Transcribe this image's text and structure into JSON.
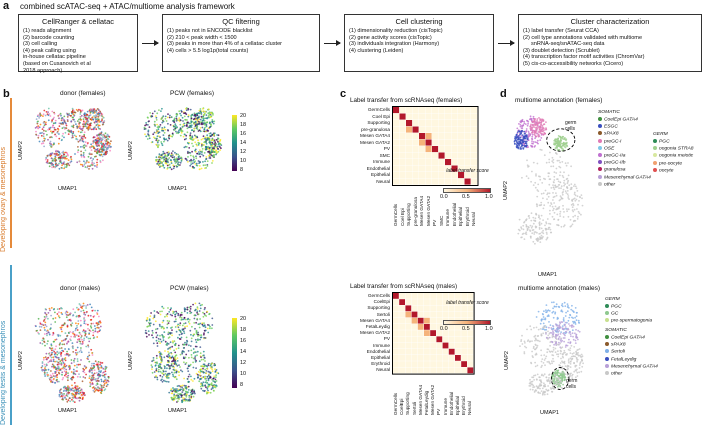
{
  "panels": {
    "a": "a",
    "b": "b",
    "c": "c",
    "d": "d"
  },
  "framework_title": "combined scATAC-seq + ATAC/multiome analysis framework",
  "steps": [
    {
      "title": "CellRanger & cellatac",
      "items": [
        "(1) reads alignment",
        "(2) barcode counting",
        "(3) cell calling",
        "(4) peak calling using",
        "in-house cellatac pipeline",
        "(based on Cusanovich et al",
        "2018 approach)"
      ]
    },
    {
      "title": "QC filtering",
      "items": [
        "(1) peaks not in ENCODE blacklist",
        "(2) 210 < peak width < 1500",
        "(3) peaks in more than 4% of a cellatac cluster",
        "(4) cells > 5.5 log1p(total counts)"
      ]
    },
    {
      "title": "Cell clustering",
      "items": [
        "(1) dimensionality reduction (cisTopic)",
        "(2) gene activity scores (cisTopic)",
        "(3) individuals integration (Harmony)",
        "(4) clustering (Leiden)"
      ]
    },
    {
      "title": "Cluster characterization",
      "items": [
        "(1) label transfer (Seurat CCA)",
        "(2) cell type annotations validated with multiome",
        "snRNA-seq/snATAC-seq data",
        "(3) doublet detection (Scrublet)",
        "(4) transcription factor motif activities (ChromVar)",
        "(5) cis-co-accessibility networks (Cicero)"
      ]
    }
  ],
  "umap": {
    "donor_f": "donor (females)",
    "pcw_f": "PCW (females)",
    "donor_m": "donor (males)",
    "pcw_m": "PCW (males)",
    "x": "UMAP1",
    "y": "UMAP2",
    "pcw_ticks": [
      "20",
      "18",
      "16",
      "14",
      "12",
      "10",
      "8"
    ]
  },
  "side_labels": {
    "female": "Developing ovary & mesonephros",
    "male": "Developing testis & mesonephros"
  },
  "heatmap_f": {
    "title": "Label transfer from scRNAseq (females)",
    "rows": [
      "GermCells",
      "Coel Epi",
      "Supporting",
      "pre-granulosa",
      "Mesen GATA4",
      "Mesen GATA2",
      "PV",
      "SMC",
      "Immune",
      "Endothelial",
      "Epithelial",
      "Neural"
    ],
    "cols": [
      "GermCells",
      "Coel Epi",
      "Supporting",
      "pre-granulosa",
      "Mesen GATA4",
      "Mesen GATA2",
      "PV",
      "SMC",
      "Immune",
      "Endothelial",
      "Epithelial",
      "Erythroid",
      "Neural"
    ],
    "scale_title": "label transfer score",
    "scale_ticks": [
      "0.0",
      "0.5",
      "1.0"
    ]
  },
  "heatmap_m": {
    "title": "Label transfer from scRNAseq (males)",
    "rows": [
      "GermCells",
      "CoelEpi",
      "Supporting",
      "Sertoli",
      "Mesen GATA4",
      "FetalLeydig",
      "Mesen GATA2",
      "PV",
      "Immune",
      "Endothelial",
      "Epithelial",
      "Erythroid",
      "Neural"
    ],
    "cols": [
      "GermCells",
      "CoelEpi",
      "Supporting",
      "Sertoli",
      "Mesen GATA4",
      "FetalLeydig",
      "Mesen GATA2",
      "PV",
      "Immune",
      "Endothelial",
      "Epithelial",
      "Erythroid",
      "Neural"
    ],
    "scale_title": "label transfer score",
    "scale_ticks": [
      "0.0",
      "0.5",
      "1.0"
    ]
  },
  "multiome_f": {
    "title": "multiome annotation (females)",
    "germ_label": "germ cells",
    "somatic_head": "SOMATIC",
    "somatic": [
      {
        "label": "CoelEpi GATA4",
        "color": "#3f8f3f"
      },
      {
        "label": "ESGC",
        "color": "#3a4fbf"
      },
      {
        "label": "sPAX8",
        "color": "#8b5a2b"
      },
      {
        "label": "preGC-I",
        "color": "#e07ab5"
      },
      {
        "label": "OSE",
        "color": "#7fc8e8"
      },
      {
        "label": "preGC-IIa",
        "color": "#c070d0"
      },
      {
        "label": "preGC-IIb",
        "color": "#8050c0"
      },
      {
        "label": "granulosa",
        "color": "#b0205a"
      },
      {
        "label": "Mesenchymal GATA4",
        "color": "#b8a0d8"
      },
      {
        "label": "other",
        "color": "#c8c8c8"
      }
    ],
    "germ_head": "GERM",
    "germ": [
      {
        "label": "PGC",
        "color": "#2e8b57"
      },
      {
        "label": "oogonia STRA8",
        "color": "#9fd08f"
      },
      {
        "label": "oogonia meiotic",
        "color": "#d8e8a0"
      },
      {
        "label": "pre-oocyte",
        "color": "#f0a070"
      },
      {
        "label": "oocyte",
        "color": "#e05050"
      }
    ]
  },
  "multiome_m": {
    "title": "multiome annotation (males)",
    "germ_label": "germ cells",
    "germ_head": "GERM",
    "germ": [
      {
        "label": "PGC",
        "color": "#2e8b57"
      },
      {
        "label": "GC",
        "color": "#8fc88f"
      },
      {
        "label": "pre-spermatogonia",
        "color": "#c8e08f"
      }
    ],
    "somatic_head": "SOMATIC",
    "somatic": [
      {
        "label": "CoelEpi GATA4",
        "color": "#3f8f3f"
      },
      {
        "label": "sPAX8",
        "color": "#8b5a2b"
      },
      {
        "label": "Sertoli",
        "color": "#7fb0e8"
      },
      {
        "label": "FetalLeydig",
        "color": "#3a4fbf"
      },
      {
        "label": "Mesenchymal GATA4",
        "color": "#b8a0d8"
      },
      {
        "label": "other",
        "color": "#c8c8c8"
      }
    ]
  },
  "colors": {
    "heat_low": "#fff7e0",
    "heat_mid": "#f5b37a",
    "heat_high": "#b2182b",
    "female_bar": "#e58a3a",
    "male_bar": "#4aa0c8"
  }
}
